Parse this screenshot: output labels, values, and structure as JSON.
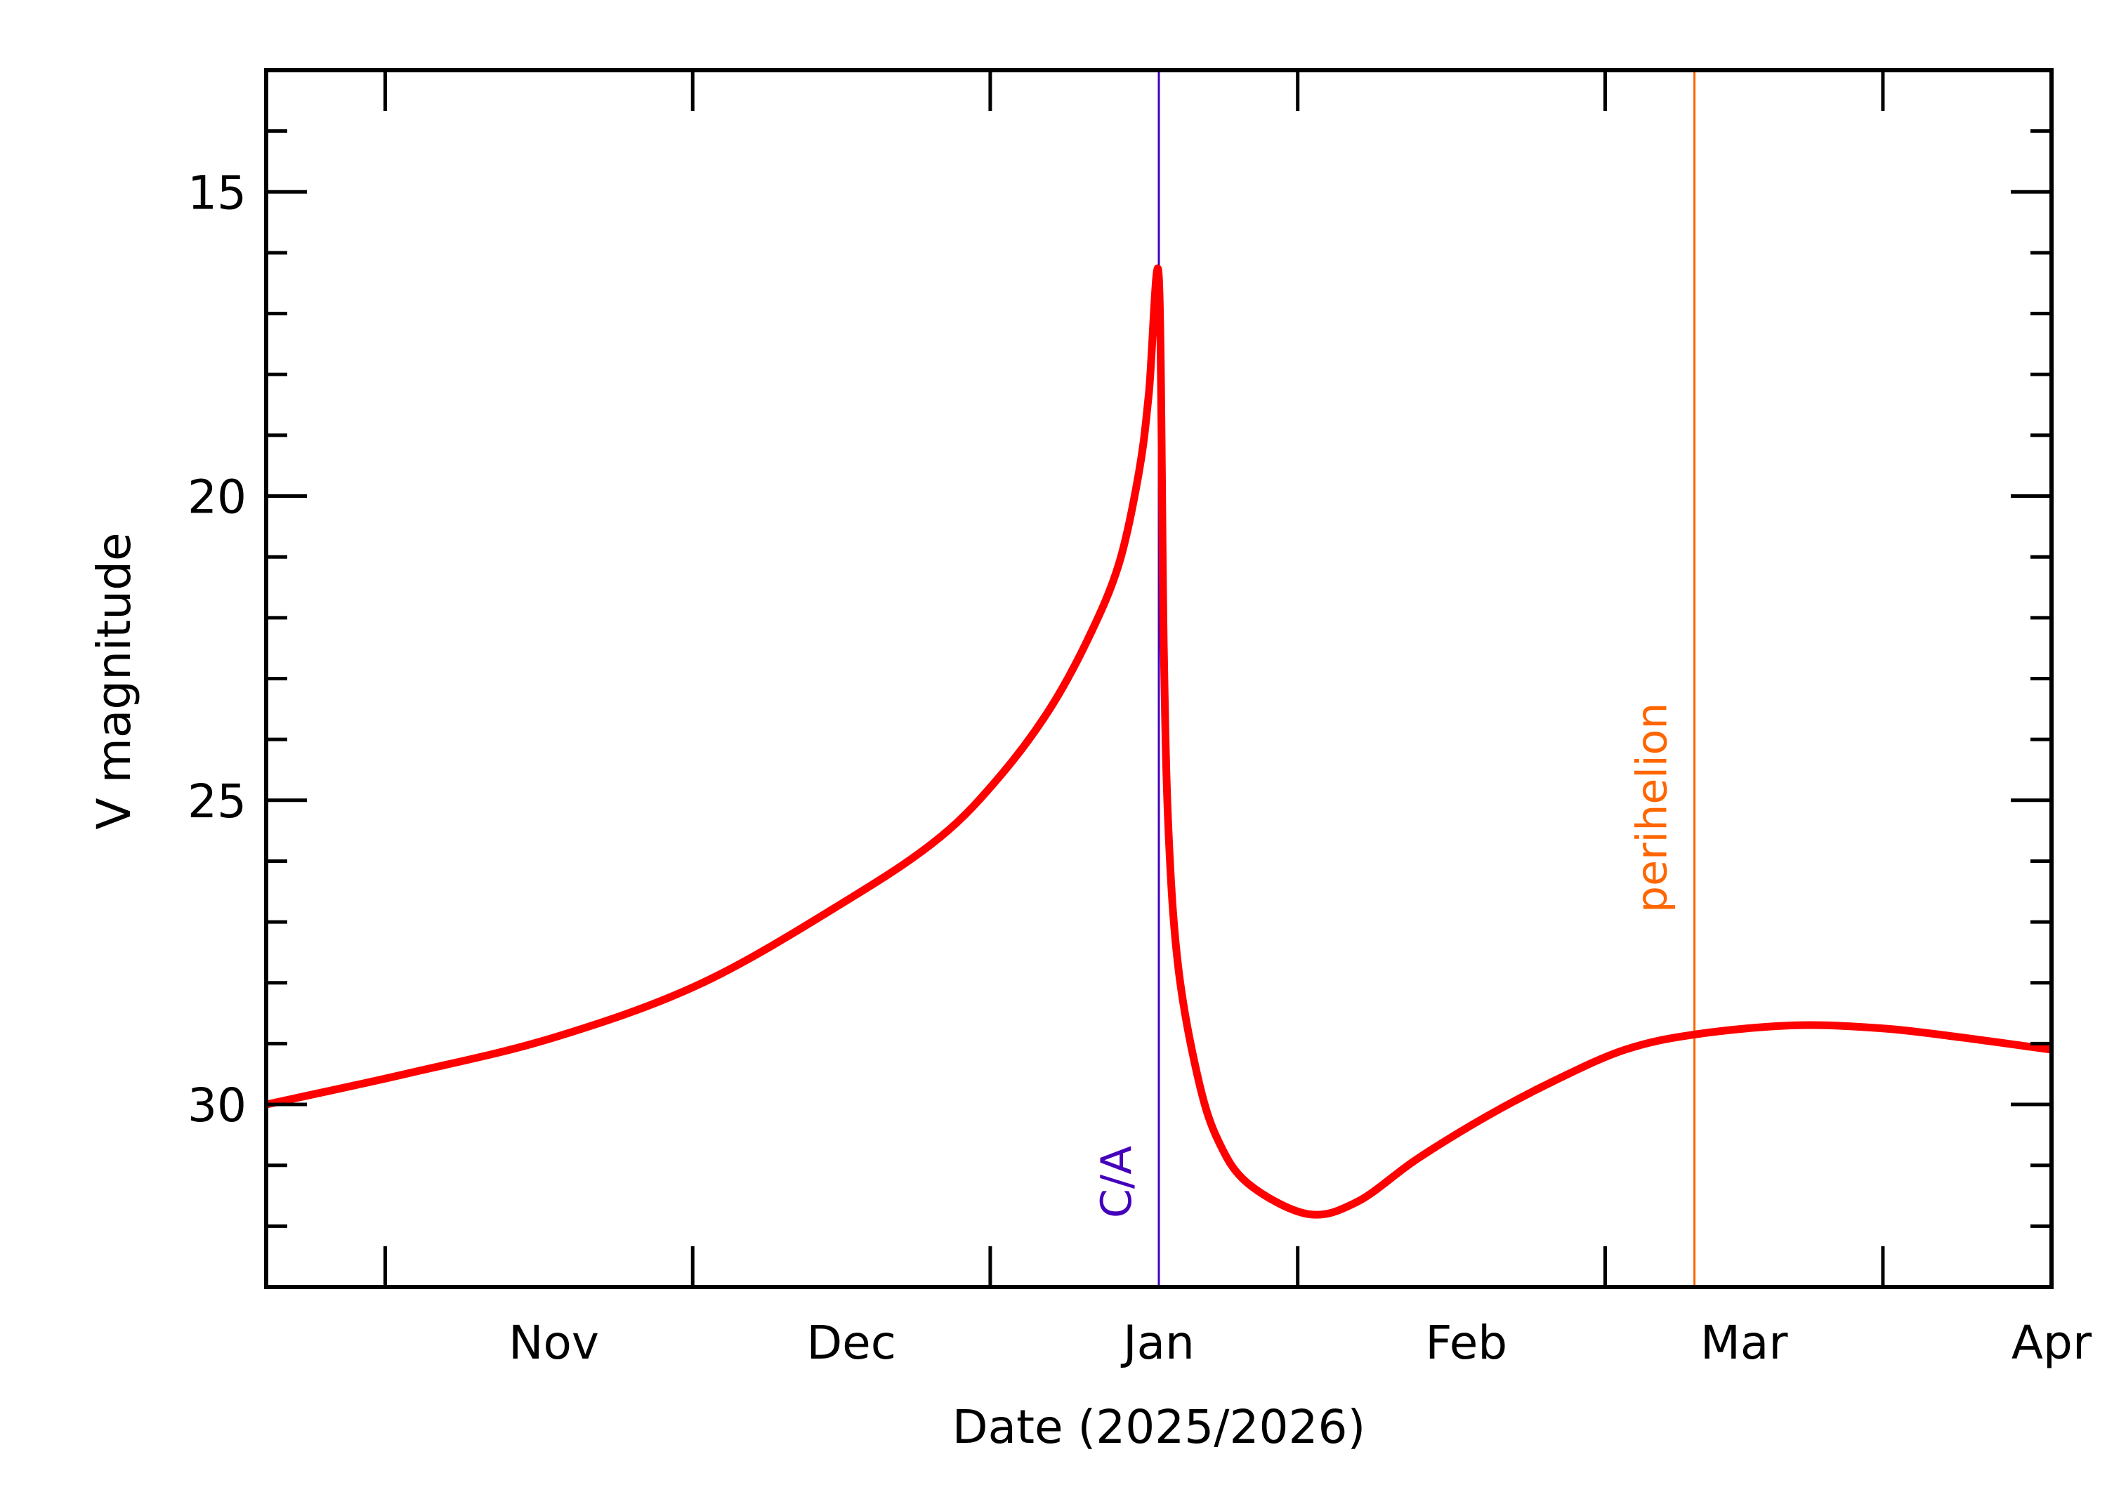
{
  "chart_data": {
    "type": "line",
    "title": "",
    "xlabel": "Date (2025/2026)",
    "ylabel": "V magnitude",
    "xlim": [
      "2025-10-03",
      "2026-04-01"
    ],
    "ylim": [
      33,
      13
    ],
    "y_reversed": true,
    "grid": false,
    "yticks": [
      15,
      20,
      25,
      30
    ],
    "xtick_labels": [
      {
        "label": "Nov",
        "date": "2025-11-01"
      },
      {
        "label": "Dec",
        "date": "2025-12-01"
      },
      {
        "label": "Jan",
        "date": "2026-01-01"
      },
      {
        "label": "Feb",
        "date": "2026-02-01"
      },
      {
        "label": "Mar",
        "date": "2026-03-01"
      },
      {
        "label": "Apr",
        "date": "2026-04-01"
      }
    ],
    "series": [
      {
        "color": "#ff0000",
        "x": [
          "2025-10-03",
          "2025-10-17",
          "2025-11-01",
          "2025-11-16",
          "2025-12-01",
          "2025-12-10",
          "2025-12-16",
          "2025-12-21",
          "2025-12-25",
          "2025-12-28",
          "2025-12-30",
          "2025-12-31",
          "2026-01-01",
          "2026-01-01T12:00",
          "2026-01-02",
          "2026-01-03",
          "2026-01-05",
          "2026-01-07",
          "2026-01-10",
          "2026-01-16",
          "2026-01-21",
          "2026-01-27",
          "2026-02-03",
          "2026-02-10",
          "2026-02-17",
          "2026-02-24",
          "2026-03-06",
          "2026-03-15",
          "2026-03-23",
          "2026-04-01"
        ],
        "y": [
          30.0,
          29.5,
          28.9,
          28.0,
          26.6,
          25.6,
          24.6,
          23.5,
          22.3,
          21.1,
          19.6,
          18.3,
          16.4,
          22.5,
          25.6,
          27.8,
          29.6,
          30.6,
          31.3,
          31.8,
          31.6,
          30.9,
          30.2,
          29.6,
          29.1,
          28.85,
          28.7,
          28.75,
          28.9,
          29.1
        ]
      }
    ],
    "annotations": [
      {
        "label": "C/A",
        "date": "2026-01-01",
        "color": "#4400bb"
      },
      {
        "label": "perihelion",
        "date": "2026-02-24",
        "color": "#ff6600"
      }
    ]
  }
}
